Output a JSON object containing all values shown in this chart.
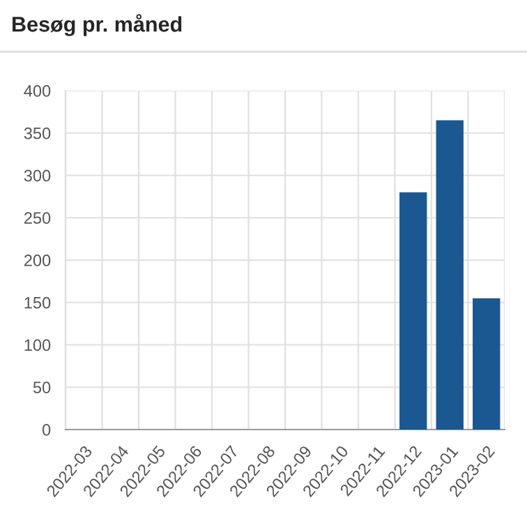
{
  "chart_data": {
    "type": "bar",
    "title": "Besøg pr. måned",
    "categories": [
      "2022-03",
      "2022-04",
      "2022-05",
      "2022-06",
      "2022-07",
      "2022-08",
      "2022-09",
      "2022-10",
      "2022-11",
      "2022-12",
      "2023-01",
      "2023-02"
    ],
    "values": [
      0,
      0,
      0,
      0,
      0,
      0,
      0,
      0,
      0,
      280,
      365,
      155
    ],
    "color": "#1b5790",
    "ylim": [
      0,
      400
    ],
    "yticks": [
      0,
      50,
      100,
      150,
      200,
      250,
      300,
      350,
      400
    ],
    "grid": true
  }
}
